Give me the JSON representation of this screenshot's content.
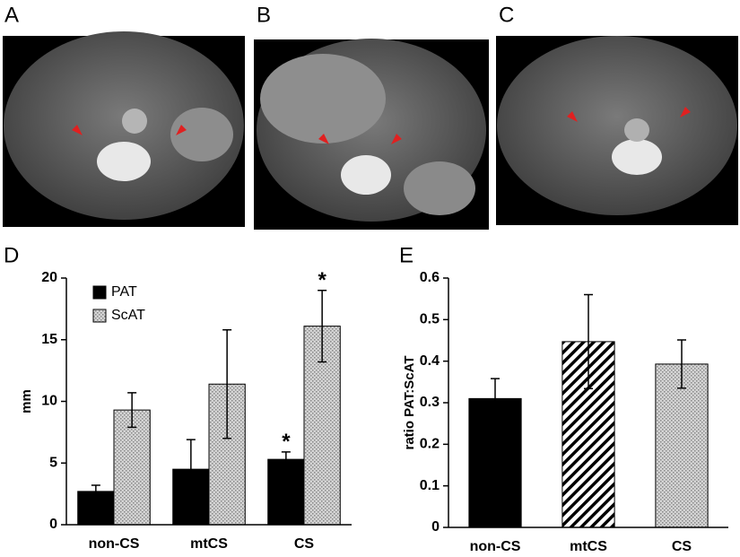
{
  "images": [
    {
      "label": "A"
    },
    {
      "label": "B"
    },
    {
      "label": "C"
    }
  ],
  "chart_data": [
    {
      "type": "bar",
      "panel_label": "D",
      "y_label": "mm",
      "categories": [
        "non-CS",
        "mtCS",
        "CS"
      ],
      "series": [
        {
          "name": "PAT",
          "color": "#000000",
          "pattern": "solid",
          "values": [
            2.7,
            4.5,
            5.3
          ],
          "errors": [
            0.5,
            2.4,
            0.6
          ],
          "annotations": [
            null,
            null,
            "*"
          ]
        },
        {
          "name": "ScAT",
          "color": "#c8c8c8",
          "pattern": "dots",
          "values": [
            9.3,
            11.4,
            16.1
          ],
          "errors": [
            1.4,
            4.4,
            2.9
          ],
          "annotations": [
            null,
            null,
            "*"
          ]
        }
      ],
      "ylim": [
        0,
        20
      ],
      "yticks": [
        0,
        5,
        10,
        15,
        20
      ],
      "legend": "upper-left"
    },
    {
      "type": "bar",
      "panel_label": "E",
      "y_label": "ratio PAT:ScAT",
      "categories": [
        "non-CS",
        "mtCS",
        "CS"
      ],
      "values": [
        0.31,
        0.447,
        0.393
      ],
      "errors": [
        0.048,
        0.113,
        0.058
      ],
      "patterns": [
        "solid",
        "hatch",
        "dots"
      ],
      "color": "#000000",
      "ylim": [
        0,
        0.6
      ],
      "yticks": [
        0,
        0.1,
        0.2,
        0.3,
        0.4,
        0.5,
        0.6
      ]
    }
  ]
}
